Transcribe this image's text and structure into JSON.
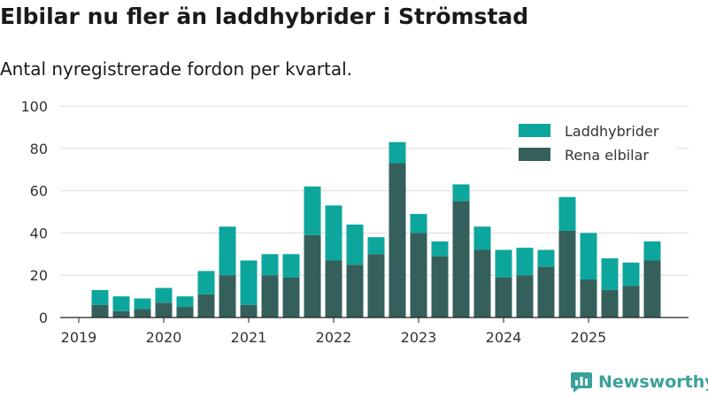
{
  "title": "Elbilar nu fler än laddhybrider i Strömstad",
  "subtitle": "Antal nyregistrerade fordon per kvartal.",
  "brand": "Newsworthy",
  "colors": {
    "laddhybrider": "#0da69c",
    "rena_elbilar": "#355f5b",
    "grid": "#dddddd",
    "axis": "#222222",
    "text": "#333333"
  },
  "chart_data": {
    "type": "bar",
    "stacked": true,
    "x_tick_labels": [
      "2019",
      "2020",
      "2021",
      "2022",
      "2023",
      "2024",
      "2025"
    ],
    "ylim": [
      0,
      100
    ],
    "y_ticks": [
      0,
      20,
      40,
      60,
      80,
      100
    ],
    "legend_position": "top-right",
    "categories": [
      "2019Q2",
      "2019Q3",
      "2019Q4",
      "2020Q1",
      "2020Q2",
      "2020Q3",
      "2020Q4",
      "2021Q1",
      "2021Q2",
      "2021Q3",
      "2021Q4",
      "2022Q1",
      "2022Q2",
      "2022Q3",
      "2022Q4",
      "2023Q1",
      "2023Q2",
      "2023Q3",
      "2023Q4",
      "2024Q1",
      "2024Q2",
      "2024Q3",
      "2024Q4",
      "2025Q1",
      "2025Q2",
      "2025Q3",
      "2025Q4"
    ],
    "series": [
      {
        "name": "Rena elbilar",
        "values": [
          6,
          3,
          4,
          7,
          5,
          11,
          20,
          6,
          20,
          19,
          39,
          27,
          25,
          30,
          73,
          40,
          29,
          55,
          32,
          19,
          20,
          24,
          41,
          18,
          13,
          15,
          27
        ]
      },
      {
        "name": "Laddhybrider",
        "values": [
          7,
          7,
          5,
          7,
          5,
          11,
          23,
          21,
          10,
          11,
          23,
          26,
          19,
          8,
          10,
          9,
          7,
          8,
          11,
          13,
          13,
          8,
          16,
          22,
          15,
          11,
          9
        ]
      }
    ]
  }
}
